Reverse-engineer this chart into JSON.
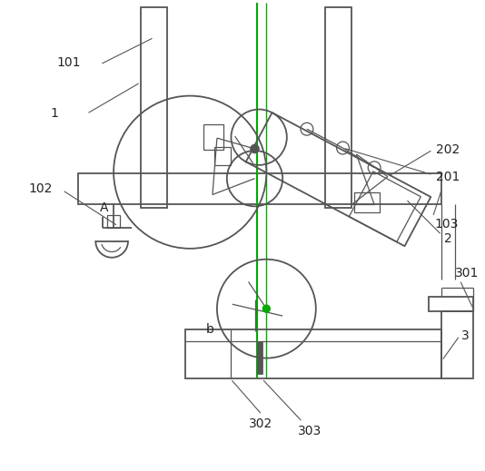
{
  "bg_color": "#ffffff",
  "line_color": "#555555",
  "green_color": "#00aa00",
  "label_color": "#222222",
  "fig_width": 5.34,
  "fig_height": 5.19,
  "dpi": 100
}
